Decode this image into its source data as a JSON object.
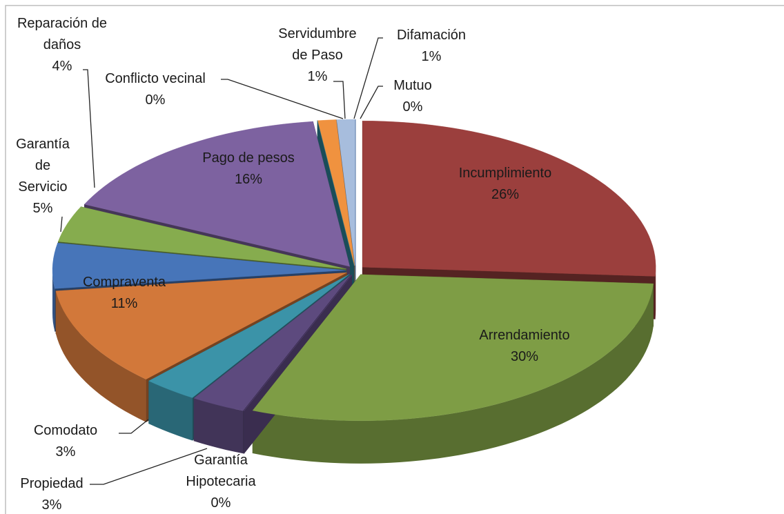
{
  "chart_data": {
    "type": "pie",
    "three_d": true,
    "categories": [
      "Incumplimiento",
      "Arrendamiento",
      "Garantía Hipotecaria",
      "Propiedad",
      "Comodato",
      "Compraventa",
      "Garantía de Servicio",
      "Reparación de daños",
      "Pago de pesos",
      "Conflicto vecinal",
      "Servidumbre de Paso",
      "Difamación",
      "Mutuo"
    ],
    "values": [
      26,
      30,
      0,
      3,
      3,
      11,
      5,
      4,
      16,
      0,
      1,
      1,
      0
    ],
    "value_labels": [
      "26%",
      "30%",
      "0%",
      "3%",
      "3%",
      "11%",
      "5%",
      "4%",
      "16%",
      "0%",
      "1%",
      "1%",
      "0%"
    ],
    "colors": [
      "#9b3f3d",
      "#7e9d45",
      "#6a5190",
      "#5d4a7e",
      "#3b93a8",
      "#d2783a",
      "#4775b9",
      "#86ac4e",
      "#7d62a0",
      "#2f8ba0",
      "#f0923f",
      "#a7bddd",
      "#4a78bc"
    ]
  }
}
